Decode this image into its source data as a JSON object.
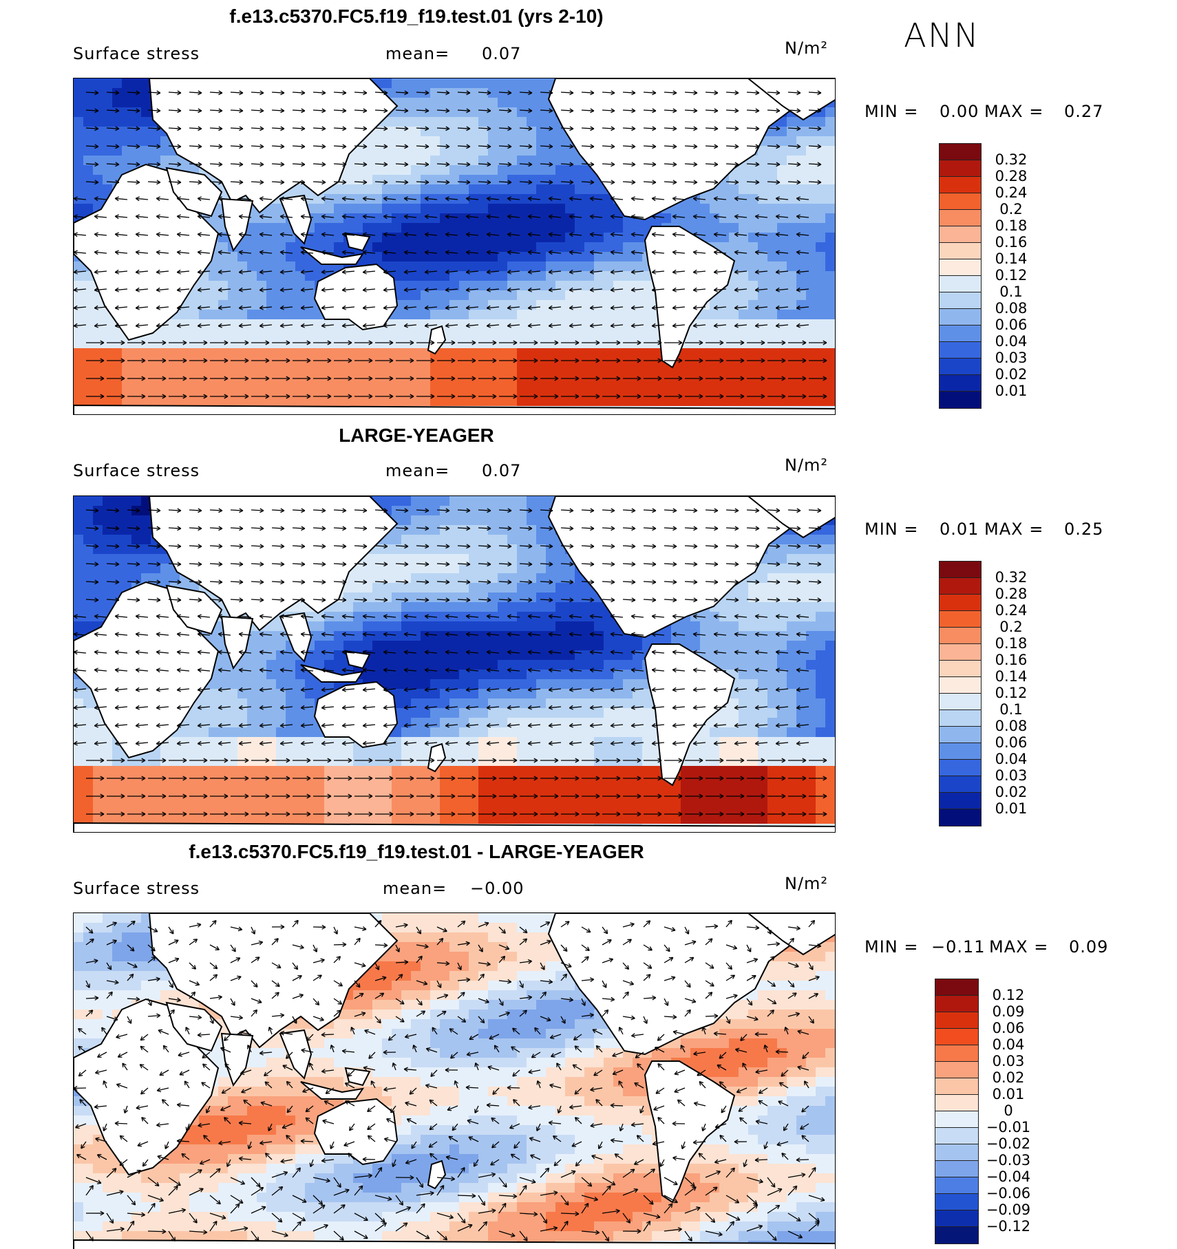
{
  "season": "ANN",
  "panels": [
    {
      "title": "f.e13.c5370.FC5.f19_f19.test.01 (yrs 2-10)",
      "variable": "Surface stress",
      "mean_label": "mean=",
      "mean_value": "0.07",
      "units": "N/m²",
      "min_label": "MIN =",
      "min_value": "0.00",
      "max_label": "MAX =",
      "max_value": "0.27",
      "colorbar": [
        "0.32",
        "0.28",
        "0.24",
        "0.2",
        "0.18",
        "0.16",
        "0.14",
        "0.12",
        "0.1",
        "0.08",
        "0.06",
        "0.04",
        "0.03",
        "0.02",
        "0.01"
      ],
      "colors": [
        "#7a0a0f",
        "#b0180e",
        "#d9310e",
        "#f2622d",
        "#f88d62",
        "#fbb495",
        "#fcd5bd",
        "#fdebe0",
        "#dceaf8",
        "#b9d5f3",
        "#8fb7ee",
        "#5e90e8",
        "#3667df",
        "#1a45c9",
        "#0a26a8",
        "#020f7a"
      ]
    },
    {
      "title": "LARGE-YEAGER",
      "variable": "Surface stress",
      "mean_label": "mean=",
      "mean_value": "0.07",
      "units": "N/m²",
      "min_label": "MIN =",
      "min_value": "0.01",
      "max_label": "MAX =",
      "max_value": "0.25",
      "colorbar": [
        "0.32",
        "0.28",
        "0.24",
        "0.2",
        "0.18",
        "0.16",
        "0.14",
        "0.12",
        "0.1",
        "0.08",
        "0.06",
        "0.04",
        "0.03",
        "0.02",
        "0.01"
      ],
      "colors": [
        "#7a0a0f",
        "#b0180e",
        "#d9310e",
        "#f2622d",
        "#f88d62",
        "#fbb495",
        "#fcd5bd",
        "#fdebe0",
        "#dceaf8",
        "#b9d5f3",
        "#8fb7ee",
        "#5e90e8",
        "#3667df",
        "#1a45c9",
        "#0a26a8",
        "#020f7a"
      ]
    },
    {
      "title": "f.e13.c5370.FC5.f19_f19.test.01 - LARGE-YEAGER",
      "variable": "Surface stress",
      "mean_label": "mean=",
      "mean_value": "−0.00",
      "units": "N/m²",
      "min_label": "MIN =",
      "min_value": "−0.11",
      "max_label": "MAX =",
      "max_value": "0.09",
      "colorbar": [
        "0.12",
        "0.09",
        "0.06",
        "0.04",
        "0.03",
        "0.02",
        "0.01",
        "0",
        "−0.01",
        "−0.02",
        "−0.03",
        "−0.04",
        "−0.06",
        "−0.09",
        "−0.12"
      ],
      "colors": [
        "#7a0a0f",
        "#b0180e",
        "#d9310e",
        "#f24d1e",
        "#f7794a",
        "#f9a27d",
        "#fbc6a8",
        "#fce3d3",
        "#e6f0fb",
        "#c9dcf5",
        "#a6c4f0",
        "#7ea5ea",
        "#4d7ee3",
        "#2254d2",
        "#0d2fae",
        "#041678"
      ]
    }
  ]
}
